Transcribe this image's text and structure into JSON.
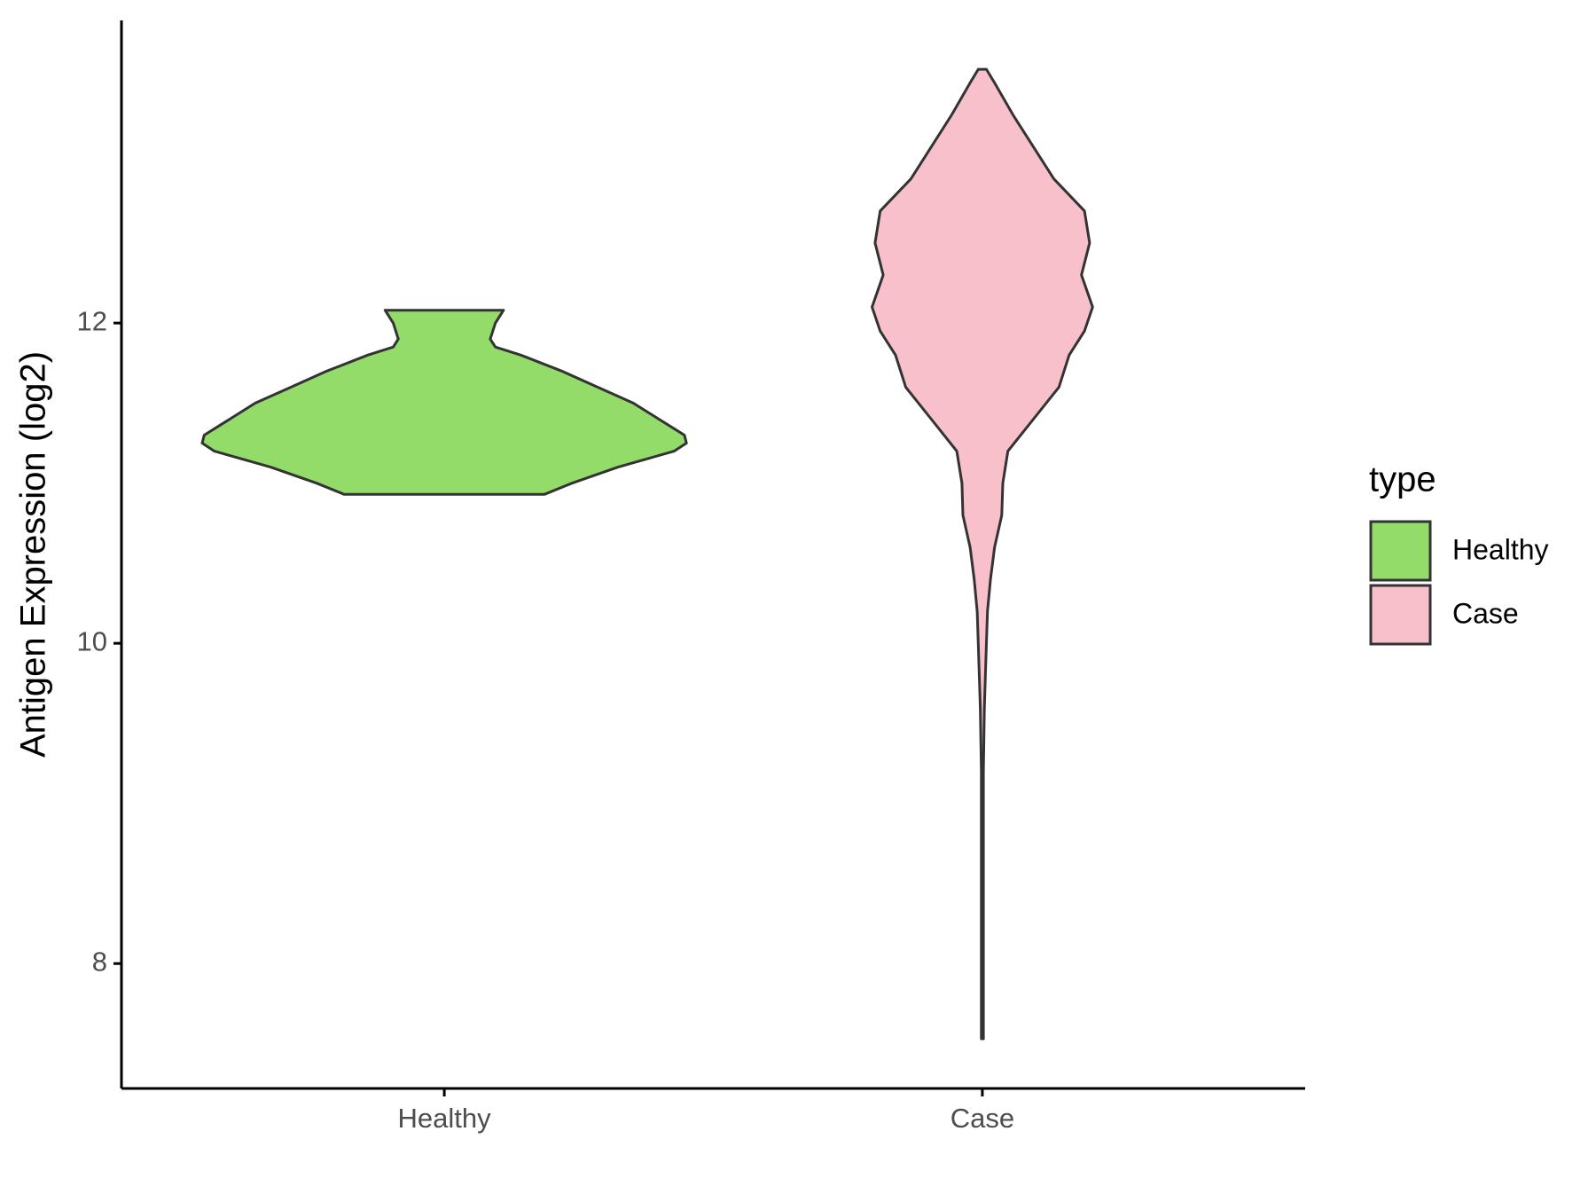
{
  "chart_data": {
    "type": "violin",
    "y_label": "Antigen Expression (log2)",
    "categories": [
      "Healthy",
      "Case"
    ],
    "legend_title": "type",
    "legend_position": "right",
    "ylim": [
      7.22,
      13.89
    ],
    "yticks": [
      8,
      10,
      12
    ],
    "grid": false,
    "series": [
      {
        "name": "Healthy",
        "color": "#93dc6a",
        "y": [
          12.08,
          12.0,
          11.9,
          11.85,
          11.8,
          11.7,
          11.6,
          11.5,
          11.4,
          11.3,
          11.25,
          11.2,
          11.1,
          11.0,
          10.93
        ],
        "density": [
          58,
          50,
          45,
          50,
          75,
          115,
          150,
          185,
          210,
          235,
          237,
          225,
          170,
          125,
          98
        ]
      },
      {
        "name": "Case",
        "color": "#f7c0cb",
        "y": [
          13.585,
          13.5,
          13.3,
          13.1,
          12.9,
          12.7,
          12.5,
          12.3,
          12.1,
          11.95,
          11.8,
          11.6,
          11.4,
          11.2,
          11.0,
          10.8,
          10.6,
          10.4,
          10.2,
          10.0,
          9.6,
          9.2,
          8.5,
          8.0,
          7.53
        ],
        "density": [
          4,
          12,
          30,
          50,
          70,
          100,
          105,
          97,
          108,
          100,
          85,
          75,
          50,
          25,
          20,
          19,
          12,
          8,
          5,
          4,
          2,
          1,
          1,
          1,
          1
        ]
      }
    ]
  }
}
